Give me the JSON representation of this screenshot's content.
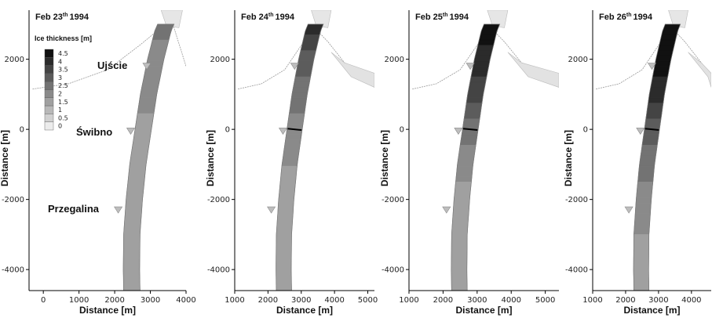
{
  "chart_data": [
    {
      "type": "heatmap",
      "title": "Feb 23",
      "title_sup": "th",
      "title_year": "1994",
      "xlabel": "Distance [m]",
      "ylabel": "Distance [m]",
      "xlim": [
        -400,
        4000
      ],
      "ylim": [
        -4600,
        3400
      ],
      "xticks": [
        0,
        1000,
        2000,
        3000,
        4000
      ],
      "yticks": [
        -4000,
        -2000,
        0,
        2000
      ],
      "ice_profile": [
        {
          "y": 3000,
          "thickness": 2.5
        },
        {
          "y": 2000,
          "thickness": 2.0
        },
        {
          "y": 1000,
          "thickness": 2.0
        },
        {
          "y": 0,
          "thickness": 1.5
        },
        {
          "y": -2000,
          "thickness": 1.5
        },
        {
          "y": -4000,
          "thickness": 1.5
        }
      ],
      "stations": [
        {
          "x": 2900,
          "y": 1800
        },
        {
          "x": 2450,
          "y": -50
        },
        {
          "x": 2100,
          "y": -2300
        }
      ],
      "boom": false
    },
    {
      "type": "heatmap",
      "title": "Feb 24",
      "title_sup": "th",
      "title_year": "1994",
      "xlabel": "Distance [m]",
      "ylabel": "Distance [m]",
      "xlim": [
        1000,
        5200
      ],
      "ylim": [
        -4600,
        3400
      ],
      "xticks": [
        1000,
        2000,
        3000,
        4000,
        5000
      ],
      "yticks": [
        -4000,
        -2000,
        0,
        2000
      ],
      "ice_profile": [
        {
          "y": 2900,
          "thickness": 4.0
        },
        {
          "y": 2000,
          "thickness": 3.0
        },
        {
          "y": 1000,
          "thickness": 2.5
        },
        {
          "y": 0,
          "thickness": 2.0
        },
        {
          "y": -2000,
          "thickness": 1.5
        },
        {
          "y": -4000,
          "thickness": 1.5
        }
      ],
      "stations": [
        {
          "x": 2800,
          "y": 1800
        },
        {
          "x": 2450,
          "y": -50
        },
        {
          "x": 2100,
          "y": -2300
        }
      ],
      "boom": true
    },
    {
      "type": "heatmap",
      "title": "Feb 25",
      "title_sup": "th",
      "title_year": "1994",
      "xlabel": "Distance [m]",
      "ylabel": "Distance [m]",
      "xlim": [
        1000,
        5400
      ],
      "ylim": [
        -4600,
        3400
      ],
      "xticks": [
        1000,
        2000,
        3000,
        4000,
        5000
      ],
      "yticks": [
        -4000,
        -2000,
        0,
        2000
      ],
      "ice_profile": [
        {
          "y": 2900,
          "thickness": 4.5
        },
        {
          "y": 2000,
          "thickness": 4.0
        },
        {
          "y": 1000,
          "thickness": 3.5
        },
        {
          "y": 0,
          "thickness": 2.5
        },
        {
          "y": -2000,
          "thickness": 1.5
        },
        {
          "y": -4000,
          "thickness": 1.5
        }
      ],
      "stations": [
        {
          "x": 2800,
          "y": 1800
        },
        {
          "x": 2450,
          "y": -50
        },
        {
          "x": 2100,
          "y": -2300
        }
      ],
      "boom": true
    },
    {
      "type": "heatmap",
      "title": "Feb 26",
      "title_sup": "th",
      "title_year": "1994",
      "xlabel": "Distance [m]",
      "ylabel": "Distance [m]",
      "xlim": [
        1000,
        4600
      ],
      "ylim": [
        -4600,
        3400
      ],
      "xticks": [
        1000,
        2000,
        3000,
        4000
      ],
      "yticks": [
        -4000,
        -2000,
        0,
        2000
      ],
      "ice_profile": [
        {
          "y": 2900,
          "thickness": 4.5
        },
        {
          "y": 2000,
          "thickness": 4.5
        },
        {
          "y": 1000,
          "thickness": 4.0
        },
        {
          "y": 0,
          "thickness": 3.0
        },
        {
          "y": -2000,
          "thickness": 2.0
        },
        {
          "y": -4000,
          "thickness": 1.5
        }
      ],
      "stations": [
        {
          "x": 2800,
          "y": 1800
        },
        {
          "x": 2450,
          "y": -50
        },
        {
          "x": 2100,
          "y": -2300
        }
      ],
      "boom": true
    }
  ],
  "legend": {
    "title": "Ice thickness [m]",
    "levels": [
      "4.5",
      "4",
      "3.5",
      "3",
      "2.5",
      "2",
      "1.5",
      "1",
      "0.5",
      "0"
    ],
    "colors": [
      "#111111",
      "#2b2b2b",
      "#444444",
      "#5c5c5c",
      "#737373",
      "#8a8a8a",
      "#a0a0a0",
      "#b8b8b8",
      "#d0d0d0",
      "#ececec"
    ]
  },
  "labels": {
    "ujscie": "Ujście",
    "swibno": "Świbno",
    "przegalina": "Przegalina"
  }
}
